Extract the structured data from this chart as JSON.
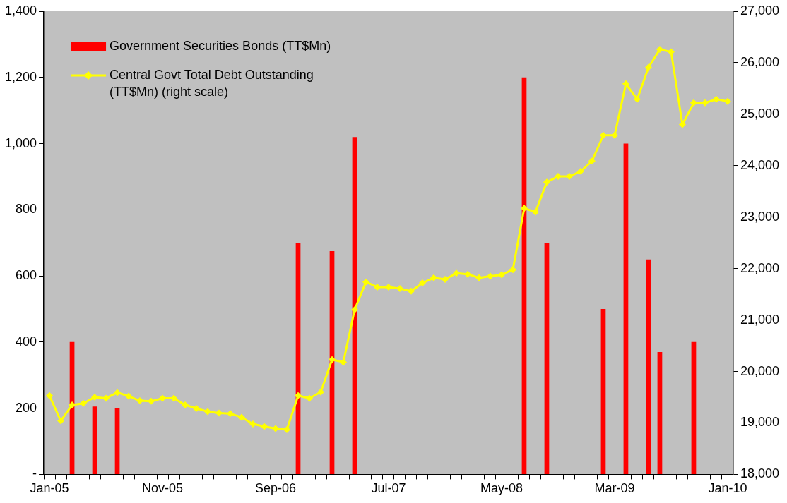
{
  "chart_data": {
    "type": "bar",
    "categories": [
      "Jan-05",
      null,
      null,
      null,
      null,
      null,
      null,
      null,
      null,
      null,
      "Nov-05",
      null,
      null,
      null,
      null,
      null,
      null,
      null,
      null,
      null,
      "Sep-06",
      null,
      null,
      null,
      null,
      null,
      null,
      null,
      null,
      null,
      "Jul-07",
      null,
      null,
      null,
      null,
      null,
      null,
      null,
      null,
      null,
      "May-08",
      null,
      null,
      null,
      null,
      null,
      null,
      null,
      null,
      null,
      "Mar-09",
      null,
      null,
      null,
      null,
      null,
      null,
      null,
      null,
      null,
      "Jan-10"
    ],
    "series": [
      {
        "name": "Government Securities Bonds (TT$Mn)",
        "color": "#ff0000",
        "values": [
          null,
          null,
          400,
          null,
          205,
          null,
          200,
          null,
          null,
          null,
          null,
          null,
          null,
          null,
          null,
          null,
          null,
          null,
          null,
          null,
          null,
          null,
          700,
          null,
          null,
          675,
          null,
          1020,
          null,
          null,
          null,
          null,
          null,
          null,
          null,
          null,
          null,
          null,
          null,
          null,
          null,
          null,
          1200,
          null,
          700,
          null,
          null,
          null,
          null,
          500,
          null,
          1000,
          null,
          650,
          370,
          null,
          null,
          400,
          null,
          null,
          null
        ]
      },
      {
        "name": "Central Govt Total Debt Outstanding (TT$Mn) (right scale)",
        "type": "line",
        "axis": "y2",
        "color": "#ffff00",
        "values": [
          19530,
          19040,
          19350,
          19380,
          19500,
          19480,
          19590,
          19520,
          19430,
          19420,
          19480,
          19480,
          19350,
          19280,
          19220,
          19190,
          19180,
          19110,
          18980,
          18930,
          18890,
          18870,
          19530,
          19480,
          19600,
          20230,
          20180,
          21200,
          21740,
          21640,
          21640,
          21610,
          21560,
          21720,
          21820,
          21790,
          21910,
          21890,
          21820,
          21850,
          21880,
          21980,
          23170,
          23100,
          23680,
          23790,
          23790,
          23890,
          24090,
          24590,
          24590,
          25590,
          25290,
          25910,
          26260,
          26210,
          24800,
          25220,
          25220,
          25290,
          25250
        ]
      }
    ],
    "ylim": [
      0,
      1400
    ],
    "yticks": [
      {
        "value": 0,
        "label": "-"
      },
      {
        "value": 200,
        "label": "200"
      },
      {
        "value": 400,
        "label": "400"
      },
      {
        "value": 600,
        "label": "600"
      },
      {
        "value": 800,
        "label": "800"
      },
      {
        "value": 1000,
        "label": "1,000"
      },
      {
        "value": 1200,
        "label": "1,200"
      },
      {
        "value": 1400,
        "label": "1,400"
      }
    ],
    "y2lim": [
      18000,
      27000
    ],
    "y2ticks": [
      {
        "value": 18000,
        "label": "18,000"
      },
      {
        "value": 19000,
        "label": "19,000"
      },
      {
        "value": 20000,
        "label": "20,000"
      },
      {
        "value": 21000,
        "label": "21,000"
      },
      {
        "value": 22000,
        "label": "22,000"
      },
      {
        "value": 23000,
        "label": "23,000"
      },
      {
        "value": 24000,
        "label": "24,000"
      },
      {
        "value": 25000,
        "label": "25,000"
      },
      {
        "value": 26000,
        "label": "26,000"
      },
      {
        "value": 27000,
        "label": "27,000"
      }
    ],
    "grid": false,
    "legend": "top left",
    "marker": "diamond",
    "line_style": "solid"
  }
}
